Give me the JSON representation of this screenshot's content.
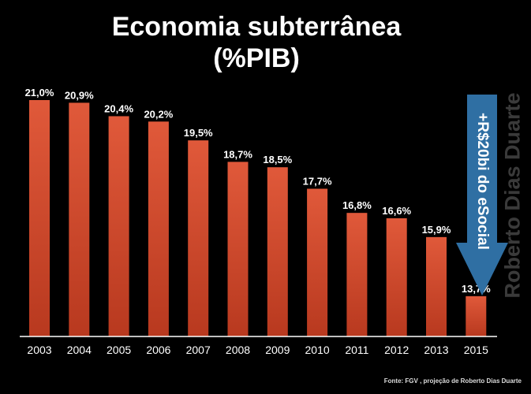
{
  "title_line1": "Economia subterrânea",
  "title_line2": "(%PIB)",
  "watermark": "Roberto Dias Duarte",
  "source": "Fonte: FGV , projeção de Roberto Dias Duarte",
  "annotation": "+R$20bi do eSocial",
  "colors": {
    "bar_top": "#e0593a",
    "bar_bottom": "#b8391f",
    "arrow": "#2f6fa3",
    "axis": "#ffffff",
    "background": "#000000"
  },
  "chart_data": {
    "type": "bar",
    "categories": [
      "2003",
      "2004",
      "2005",
      "2006",
      "2007",
      "2008",
      "2009",
      "2010",
      "2011",
      "2012",
      "2013",
      "2015"
    ],
    "values": [
      21.0,
      20.9,
      20.4,
      20.2,
      19.5,
      18.7,
      18.5,
      17.7,
      16.8,
      16.6,
      15.9,
      13.7
    ],
    "value_labels": [
      "21,0%",
      "20,9%",
      "20,4%",
      "20,2%",
      "19,5%",
      "18,7%",
      "18,5%",
      "17,7%",
      "16,8%",
      "16,6%",
      "15,9%",
      "13,7%"
    ],
    "title": "Economia subterrânea (%PIB)",
    "xlabel": "",
    "ylabel": "",
    "ylim": [
      12.2,
      21.0
    ],
    "grid": false,
    "legend": "none"
  }
}
